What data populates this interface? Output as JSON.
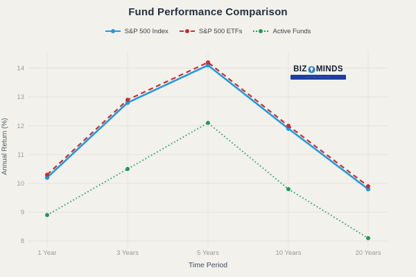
{
  "page": {
    "background": "#f2f1eb",
    "gridline_color": "#e3e2db"
  },
  "chart_data": {
    "type": "line",
    "title": "Fund Performance Comparison",
    "xlabel": "Time Period",
    "ylabel": "Annual Return (%)",
    "categories": [
      "1 Year",
      "3 Years",
      "5 Years",
      "10 Years",
      "20 Years"
    ],
    "yticks": [
      8,
      9,
      10,
      11,
      12,
      13,
      14
    ],
    "ylim": [
      7.76,
      14.56
    ],
    "grid": true,
    "legend_position": "top",
    "series": [
      {
        "name": "S&P 500 Index",
        "values": [
          10.2,
          12.8,
          14.1,
          11.9,
          9.8
        ],
        "color": "#1b9be0",
        "style": "solid"
      },
      {
        "name": "S&P 500 ETFs",
        "values": [
          10.3,
          12.9,
          14.2,
          12.0,
          9.9
        ],
        "color": "#cc2b2b",
        "style": "dashed"
      },
      {
        "name": "Active Funds",
        "values": [
          8.9,
          10.5,
          12.1,
          9.8,
          8.1
        ],
        "color": "#21995a",
        "style": "dotted"
      }
    ]
  },
  "logo": {
    "brand_left": "BIZ",
    "brand_right": "MINDS",
    "icon": "globe-bulb-icon",
    "icon_color": "#2e7cd6",
    "banner_color": "#1e3f9e",
    "tagline_illegible": "···· ··· ····· ····"
  }
}
